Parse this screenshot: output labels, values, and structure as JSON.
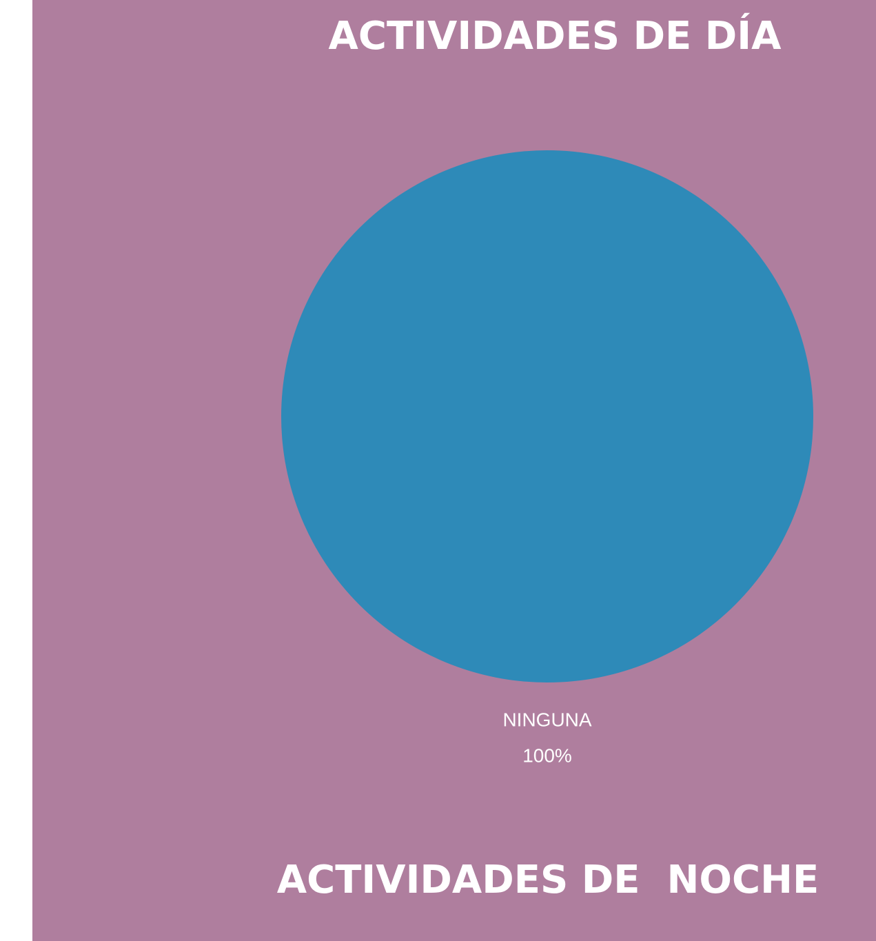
{
  "chart_data": {
    "type": "pie",
    "title": "ACTIVIDADES DE DÍA",
    "categories": [
      "NINGUNA"
    ],
    "values": [
      100
    ],
    "value_labels": [
      "100%"
    ],
    "colors": [
      "#2e8ab8"
    ]
  },
  "heading": "ACTIVIDADES DE  NOCHE"
}
